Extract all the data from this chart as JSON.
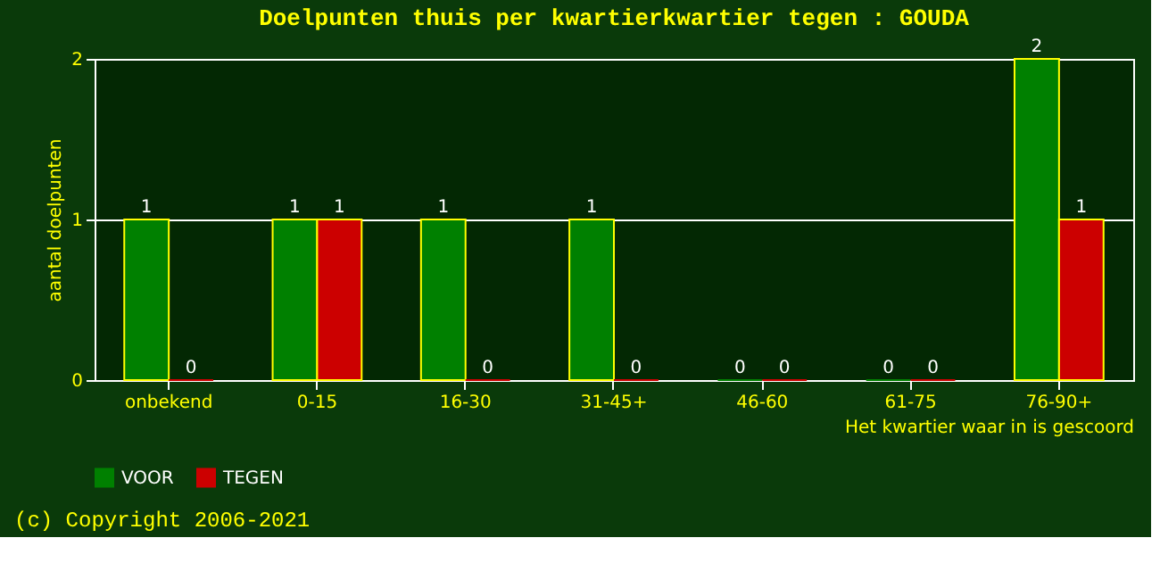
{
  "chart_data": {
    "type": "bar",
    "title": "Doelpunten thuis per kwartierkwartier tegen : GOUDA",
    "categories": [
      "onbekend",
      "0-15",
      "16-30",
      "31-45+",
      "46-60",
      "61-75",
      "76-90+"
    ],
    "series": [
      {
        "name": "VOOR",
        "color": "#008000",
        "values": [
          1,
          1,
          1,
          1,
          0,
          0,
          2
        ]
      },
      {
        "name": "TEGEN",
        "color": "#cc0000",
        "values": [
          0,
          1,
          0,
          0,
          0,
          0,
          1
        ]
      }
    ],
    "xlabel": "Het kwartier waar in is gescoord",
    "ylabel": "aantal doelpunten",
    "ylim": [
      0,
      2
    ],
    "yticks": [
      0,
      1,
      2
    ],
    "grid": "y",
    "legend": "bottom",
    "data_labels": true,
    "annotations": [
      "(c) Copyright 2006-2021"
    ]
  }
}
